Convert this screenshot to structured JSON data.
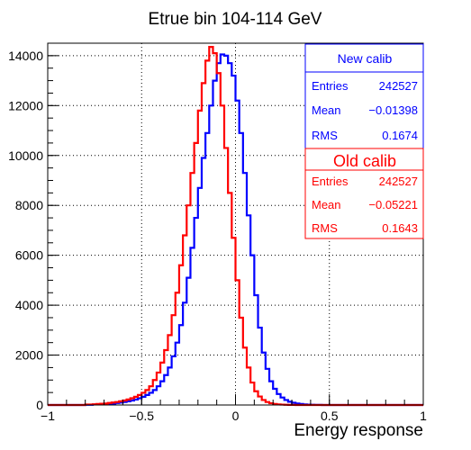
{
  "chart_data": {
    "type": "line",
    "title": "Etrue bin 104-114 GeV",
    "xlabel": "Energy response",
    "ylabel": "",
    "xlim": [
      -1,
      1
    ],
    "ylim": [
      0,
      14500
    ],
    "grid": true,
    "x_ticks": [
      {
        "value": -1,
        "label": "−1"
      },
      {
        "value": -0.5,
        "label": "−0.5"
      },
      {
        "value": 0,
        "label": "0"
      },
      {
        "value": 0.5,
        "label": "0.5"
      },
      {
        "value": 1,
        "label": "1"
      }
    ],
    "y_ticks": [
      {
        "value": 0,
        "label": "0"
      },
      {
        "value": 2000,
        "label": "2000"
      },
      {
        "value": 4000,
        "label": "4000"
      },
      {
        "value": 6000,
        "label": "6000"
      },
      {
        "value": 8000,
        "label": "8000"
      },
      {
        "value": 10000,
        "label": "10000"
      },
      {
        "value": 12000,
        "label": "12000"
      },
      {
        "value": 14000,
        "label": "14000"
      }
    ],
    "bin_low": -1,
    "bin_width": 0.02,
    "series": [
      {
        "name": "New calib",
        "color": "#0000ff",
        "stats": {
          "entries_label": "Entries",
          "entries": "242527",
          "mean_label": "Mean",
          "mean": "−0.01398",
          "rms_label": "RMS",
          "rms": "0.1674"
        },
        "values": [
          0,
          0,
          0,
          0,
          0,
          0,
          0,
          0,
          0,
          0,
          10,
          10,
          20,
          20,
          30,
          40,
          50,
          60,
          80,
          100,
          120,
          150,
          180,
          220,
          270,
          330,
          400,
          490,
          600,
          750,
          950,
          1200,
          1500,
          1950,
          2500,
          3200,
          4100,
          5100,
          6300,
          7500,
          8700,
          9900,
          10900,
          12000,
          13000,
          13700,
          14050,
          14000,
          13700,
          13200,
          12200,
          10900,
          9300,
          7600,
          6000,
          4400,
          3100,
          2100,
          1450,
          950,
          650,
          440,
          300,
          200,
          130,
          90,
          60,
          40,
          25,
          15,
          10,
          5,
          5,
          0,
          0,
          0,
          0,
          0,
          0,
          0,
          0,
          0,
          0,
          0,
          0,
          0,
          0,
          0,
          0,
          0,
          0,
          0,
          0,
          0,
          0,
          0,
          0,
          0,
          0,
          0
        ]
      },
      {
        "name": "Old calib",
        "color": "#ff0000",
        "stats": {
          "entries_label": "Entries",
          "entries": "242527",
          "mean_label": "Mean",
          "mean": "−0.05221",
          "rms_label": "RMS",
          "rms": "0.1643"
        },
        "values": [
          0,
          0,
          0,
          0,
          0,
          0,
          0,
          0,
          0,
          0,
          20,
          20,
          30,
          40,
          50,
          60,
          80,
          100,
          120,
          150,
          180,
          220,
          270,
          330,
          400,
          490,
          600,
          750,
          1000,
          1300,
          1700,
          2200,
          2800,
          3600,
          4500,
          5600,
          6800,
          8000,
          9300,
          10500,
          11800,
          12900,
          13800,
          14350,
          14100,
          13300,
          12000,
          10300,
          8500,
          6700,
          5000,
          3500,
          2300,
          1500,
          900,
          550,
          340,
          200,
          120,
          70,
          40,
          25,
          15,
          10,
          5,
          5,
          0,
          0,
          0,
          0,
          0,
          0,
          0,
          0,
          0,
          0,
          0,
          0,
          0,
          0,
          0,
          0,
          0,
          0,
          0,
          0,
          0,
          0,
          0,
          0,
          0,
          0,
          0,
          0,
          0,
          0,
          0,
          0,
          0,
          0
        ]
      }
    ]
  }
}
